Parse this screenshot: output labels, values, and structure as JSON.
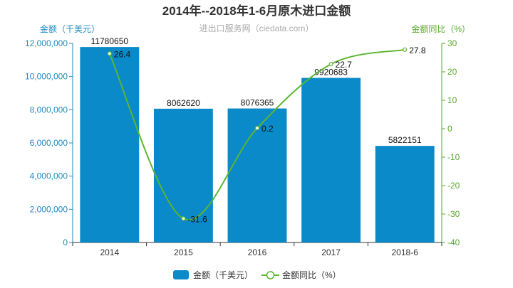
{
  "chart_data": {
    "type": "bar",
    "title": "2014年--2018年1-6月原木进口金额",
    "subtitle": "进出口服务网（ciedata.com）",
    "categories": [
      "2014",
      "2015",
      "2016",
      "2017",
      "2018-6"
    ],
    "y_left": {
      "label": "金额（千美元）",
      "range": [
        0,
        12000000
      ],
      "ticks": [
        "0",
        "2,000,000",
        "4,000,000",
        "6,000,000",
        "8,000,000",
        "10,000,000",
        "12,000,000"
      ]
    },
    "y_right": {
      "label": "金额同比（%）",
      "range": [
        -40,
        30
      ],
      "ticks": [
        "-40",
        "-30",
        "-20",
        "-10",
        "0",
        "10",
        "20",
        "30"
      ]
    },
    "series": [
      {
        "name": "金额（千美元）",
        "type": "bar",
        "axis": "left",
        "values": [
          11780650,
          8062620,
          8076365,
          9920683,
          5822151
        ],
        "labels": [
          "11780650",
          "8062620",
          "8076365",
          "9920683",
          "5822151"
        ]
      },
      {
        "name": "金额同比（%）",
        "type": "line",
        "axis": "right",
        "values": [
          26.4,
          -31.6,
          0.2,
          22.7,
          27.8
        ],
        "labels": [
          "26.4",
          "-31.6",
          "0.2",
          "22.7",
          "27.8"
        ]
      }
    ],
    "legend_position": "bottom",
    "colors": {
      "bar": "#0a8ac9",
      "line": "#5cb531",
      "left_axis": "#1f8ac0",
      "right_axis": "#5aaa2e",
      "title": "#333333",
      "subtitle": "#aaaaaa"
    },
    "grid": false
  }
}
